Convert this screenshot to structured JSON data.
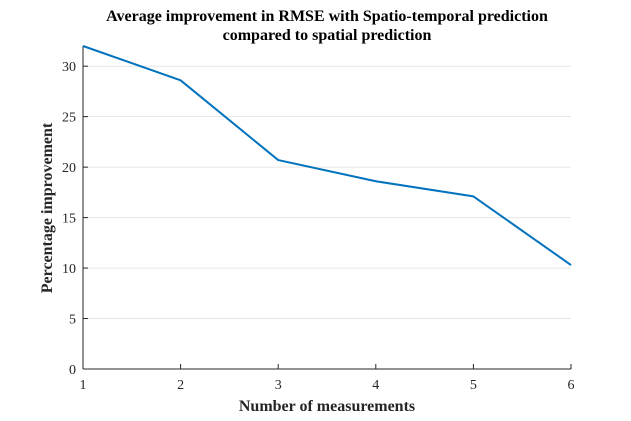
{
  "chart_data": {
    "type": "line",
    "title": "Average improvement in RMSE with Spatio-temporal prediction",
    "subtitle": "compared to spatial prediction",
    "xlabel": "Number of measurements",
    "ylabel": "Percentage improvement",
    "x": [
      1,
      2,
      3,
      4,
      5,
      6
    ],
    "series": [
      {
        "values": [
          32.0,
          28.6,
          20.7,
          18.6,
          17.1,
          10.3
        ]
      }
    ],
    "xlim": [
      1,
      6
    ],
    "ylim": [
      0,
      32
    ],
    "xticks": [
      1,
      2,
      3,
      4,
      5,
      6
    ],
    "yticks": [
      0,
      5,
      10,
      15,
      20,
      25,
      30
    ],
    "grid": "horizontal",
    "legend": "none",
    "colors": {
      "line": "#0072BD",
      "axis": "#262626",
      "grid": "#e6e6e6"
    }
  }
}
